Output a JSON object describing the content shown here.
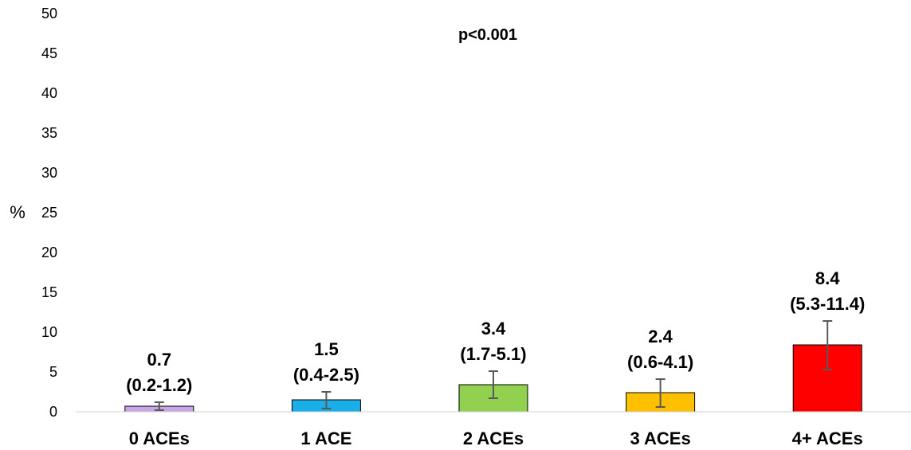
{
  "chart_data": {
    "type": "bar",
    "title": "",
    "xlabel": "",
    "ylabel": "%",
    "ylim": [
      0,
      50
    ],
    "yticks": [
      0,
      5,
      10,
      15,
      20,
      25,
      30,
      35,
      40,
      45,
      50
    ],
    "grid": false,
    "categories": [
      "0 ACEs",
      "1 ACE",
      "2 ACEs",
      "3 ACEs",
      "4+ ACEs"
    ],
    "values": [
      0.7,
      1.5,
      3.4,
      2.4,
      8.4
    ],
    "ci_low": [
      0.2,
      0.4,
      1.7,
      0.6,
      5.3
    ],
    "ci_high": [
      1.2,
      2.5,
      5.1,
      4.1,
      11.4
    ],
    "value_labels": [
      "0.7",
      "1.5",
      "3.4",
      "2.4",
      "8.4"
    ],
    "ci_labels": [
      "(0.2-1.2)",
      "(0.4-2.5)",
      "(1.7-5.1)",
      "(0.6-4.1)",
      "(5.3-11.4)"
    ],
    "colors": [
      "#C9A6E4",
      "#1BAFEA",
      "#92D050",
      "#FFC000",
      "#FF0000"
    ],
    "annotation": "p<0.001"
  }
}
